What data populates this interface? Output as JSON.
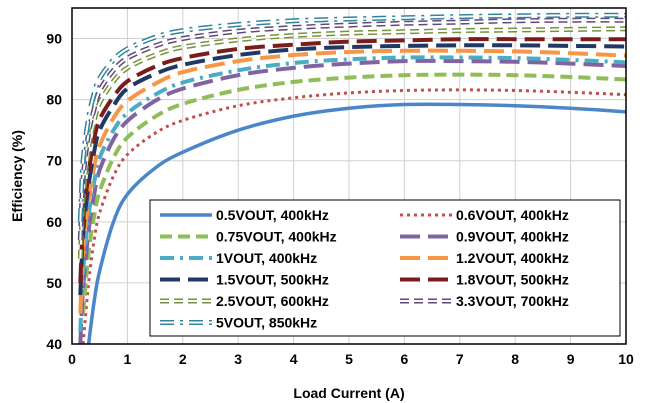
{
  "chart_data": {
    "type": "line",
    "title": "",
    "xlabel": "Load Current (A)",
    "ylabel": "Efficiency (%)",
    "xlim": [
      0,
      10
    ],
    "ylim": [
      40,
      95
    ],
    "xticks": [
      "0",
      "1",
      "2",
      "3",
      "4",
      "5",
      "6",
      "7",
      "8",
      "9",
      "10"
    ],
    "yticks": [
      "40",
      "50",
      "60",
      "70",
      "80",
      "90"
    ],
    "grid": true,
    "legend_position": "bottom-right",
    "x": [
      0.1,
      0.15,
      0.2,
      0.3,
      0.4,
      0.5,
      0.75,
      1,
      1.5,
      2,
      3,
      4,
      5,
      6,
      7,
      8,
      9,
      10
    ],
    "series": [
      {
        "name": "0.5VOUT, 400kHz",
        "color": "#4a86c8",
        "dash": "solid",
        "values": [
          null,
          null,
          null,
          40,
          47,
          52,
          60,
          64.5,
          68.8,
          71.4,
          75.0,
          77.3,
          78.6,
          79.2,
          79.2,
          79.0,
          78.6,
          78.0
        ]
      },
      {
        "name": "0.6VOUT, 400kHz",
        "color": "#c0504d",
        "dash": "dot",
        "values": [
          null,
          null,
          40,
          50,
          57,
          61.5,
          67.5,
          71.0,
          74.5,
          76.6,
          79.0,
          80.3,
          81.1,
          81.5,
          81.6,
          81.5,
          81.2,
          80.8
        ]
      },
      {
        "name": "0.75VOUT, 400kHz",
        "color": "#8fbe58",
        "dash": "dash",
        "values": [
          null,
          null,
          45,
          55,
          61,
          65,
          70.5,
          73.8,
          77.2,
          79.3,
          81.6,
          82.9,
          83.6,
          84.0,
          84.1,
          84.0,
          83.7,
          83.3
        ]
      },
      {
        "name": "0.9VOUT, 400kHz",
        "color": "#8064a2",
        "dash": "longdash",
        "values": [
          null,
          40,
          49,
          58.5,
          64.5,
          68.5,
          73.5,
          76.5,
          79.8,
          81.8,
          84.0,
          85.2,
          85.9,
          86.3,
          86.3,
          86.2,
          85.9,
          85.5
        ]
      },
      {
        "name": "1VOUT, 400kHz",
        "color": "#4bacc6",
        "dash": "dashdot",
        "values": [
          null,
          42,
          52,
          61,
          66.5,
          70.5,
          75.0,
          77.8,
          80.8,
          82.8,
          84.8,
          86.0,
          86.6,
          86.9,
          86.9,
          86.8,
          86.5,
          86.1
        ]
      },
      {
        "name": "1.2VOUT, 400kHz",
        "color": "#f79646",
        "dash": "longdash",
        "values": [
          null,
          45,
          55,
          63.5,
          69,
          72.5,
          77.0,
          79.8,
          82.6,
          84.5,
          86.3,
          87.3,
          87.8,
          88.0,
          88.0,
          87.9,
          87.6,
          87.2
        ]
      },
      {
        "name": "1.5VOUT, 500kHz",
        "color": "#1f3864",
        "dash": "longdash",
        "values": [
          null,
          48,
          58,
          66,
          71.5,
          75,
          79.0,
          81.8,
          84.2,
          85.7,
          87.3,
          88.2,
          88.6,
          88.8,
          88.9,
          88.9,
          88.8,
          88.7
        ]
      },
      {
        "name": "1.8VOUT, 500kHz",
        "color": "#7b1c1c",
        "dash": "longdash",
        "values": [
          null,
          50,
          60,
          68,
          73.5,
          76.8,
          80.5,
          83.0,
          85.4,
          86.8,
          88.3,
          89.0,
          89.5,
          89.7,
          89.9,
          89.9,
          89.9,
          89.9
        ]
      },
      {
        "name": "2.5VOUT, 600kHz",
        "color": "#76923c",
        "dash": "outline",
        "values": [
          null,
          54,
          64,
          72,
          76.5,
          79.5,
          83.0,
          85.2,
          87.3,
          88.6,
          89.8,
          90.5,
          90.9,
          91.1,
          91.3,
          91.4,
          91.5,
          91.6
        ]
      },
      {
        "name": "3.3VOUT, 700kHz",
        "color": "#5f497a",
        "dash": "outline",
        "values": [
          null,
          57,
          67,
          74.5,
          78.5,
          81.5,
          84.8,
          86.8,
          88.8,
          90.0,
          91.2,
          91.8,
          92.2,
          92.5,
          92.7,
          92.9,
          93.0,
          93.0
        ]
      },
      {
        "name": "5VOUT, 850kHz",
        "color": "#31849b",
        "dash": "outline-dot",
        "values": [
          null,
          60,
          70,
          77,
          81,
          83.5,
          86.5,
          88.3,
          90.2,
          91.3,
          92.3,
          92.9,
          93.2,
          93.4,
          93.6,
          93.7,
          93.8,
          93.8
        ]
      }
    ]
  }
}
